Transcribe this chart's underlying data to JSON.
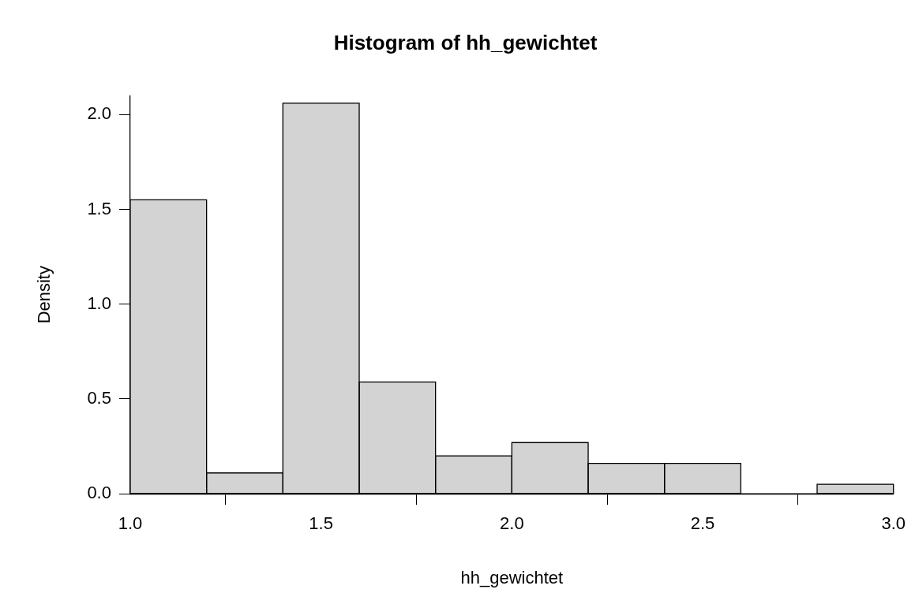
{
  "chart_data": {
    "type": "histogram",
    "title": "Histogram of hh_gewichtet",
    "xlabel": "hh_gewichtet",
    "ylabel": "Density",
    "bins": [
      1.0,
      1.2,
      1.4,
      1.6,
      1.8,
      2.0,
      2.2,
      2.4,
      2.6,
      2.8,
      3.0
    ],
    "values": [
      1.55,
      0.11,
      2.06,
      0.59,
      0.2,
      0.27,
      0.16,
      0.16,
      0,
      0.05
    ],
    "color": "#d3d3d3",
    "xlim": [
      1.0,
      3.0
    ],
    "xticks": [
      {
        "value": 1,
        "label": "1.0"
      },
      {
        "value": 1.5,
        "label": "1.5"
      },
      {
        "value": 2,
        "label": "2.0"
      },
      {
        "value": 2.5,
        "label": "2.5"
      },
      {
        "value": 3,
        "label": "3.0"
      }
    ],
    "ylim": [
      0,
      2.1
    ],
    "yticks": [
      {
        "value": 0,
        "label": "0.0"
      },
      {
        "value": 0.5,
        "label": "0.5"
      },
      {
        "value": 1,
        "label": "1.0"
      },
      {
        "value": 1.5,
        "label": "1.5"
      },
      {
        "value": 2,
        "label": "2.0"
      }
    ],
    "grid": false,
    "legend": false
  }
}
